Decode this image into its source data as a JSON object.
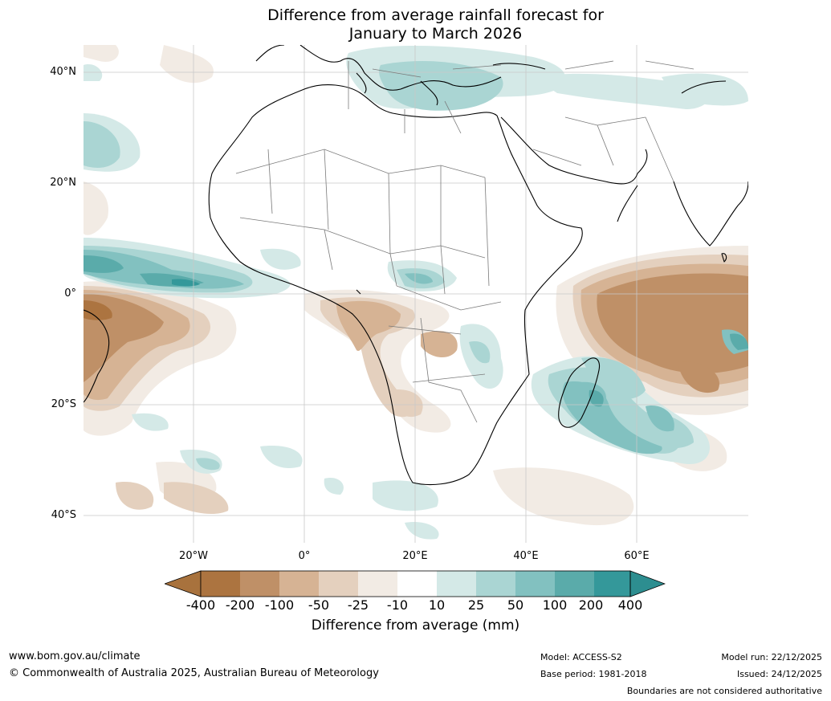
{
  "title_line1": "Difference from average rainfall forecast for",
  "title_line2": "January to March 2026",
  "lat_labels": [
    "40°N",
    "20°N",
    "0°",
    "20°S",
    "40°S"
  ],
  "lon_labels": [
    "20°W",
    "0°",
    "20°E",
    "40°E",
    "60°E"
  ],
  "colorbar": {
    "ticks": [
      "-400",
      "-200",
      "-100",
      "-50",
      "-25",
      "-10",
      "10",
      "25",
      "50",
      "100",
      "200",
      "400"
    ],
    "colors": [
      "#a8723d",
      "#ac7440",
      "#bf9067",
      "#d6b394",
      "#e4d0be",
      "#f2ebe4",
      "#ffffff",
      "#d4e9e7",
      "#aad5d3",
      "#82c1c0",
      "#5aabaa",
      "#34989a",
      "#2d8e90"
    ],
    "label": "Difference from average (mm)"
  },
  "footer": {
    "website": "www.bom.gov.au/climate",
    "copyright": "© Commonwealth of Australia 2025, Australian Bureau of Meteorology",
    "model": "Model: ACCESS-S2",
    "base_period": "Base period: 1981-2018",
    "model_run": "Model run: 22/12/2025",
    "issued": "Issued: 24/12/2025",
    "boundaries": "Boundaries are not considered authoritative"
  }
}
